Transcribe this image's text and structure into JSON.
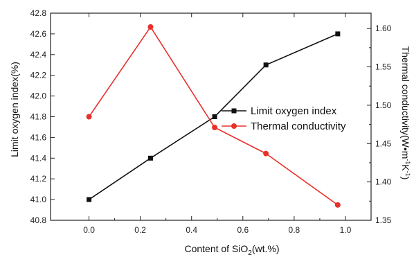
{
  "chart_data": {
    "type": "line",
    "x": [
      0.0,
      0.24,
      0.49,
      0.69,
      0.97
    ],
    "xlabel_main": "Content of SiO",
    "xlabel_sub": "2",
    "xlabel_tail": "(wt.%)",
    "xlim": [
      -0.15,
      1.1
    ],
    "xticks": [
      "0.0",
      "0.2",
      "0.4",
      "0.6",
      "0.8",
      "1.0"
    ],
    "ylabel_left": "Limit oxygen index(%)",
    "ylim_left": [
      40.8,
      42.8
    ],
    "yticks_left": [
      "40.8",
      "41.0",
      "41.2",
      "41.4",
      "41.6",
      "41.8",
      "42.0",
      "42.2",
      "42.4",
      "42.6",
      "42.8"
    ],
    "ylabel_right_main": "Thermal conductivity(W•m",
    "ylabel_right_sup1": "-1",
    "ylabel_right_mid": "K",
    "ylabel_right_sup2": "-1",
    "ylabel_right_tail": ")",
    "ylim_right": [
      1.35,
      1.62
    ],
    "yticks_right": [
      "1.35",
      "1.40",
      "1.45",
      "1.50",
      "1.55",
      "1.60"
    ],
    "series": [
      {
        "name": "Limit oxygen index",
        "axis": "left",
        "marker": "square",
        "color": "#111111",
        "values": [
          41.0,
          41.4,
          41.8,
          42.3,
          42.6
        ]
      },
      {
        "name": "Thermal conductivity",
        "axis": "right",
        "marker": "circle",
        "color": "#e8302a",
        "values": [
          1.485,
          1.602,
          1.471,
          1.437,
          1.37
        ]
      }
    ],
    "legend_position": "center-right",
    "grid": false
  }
}
